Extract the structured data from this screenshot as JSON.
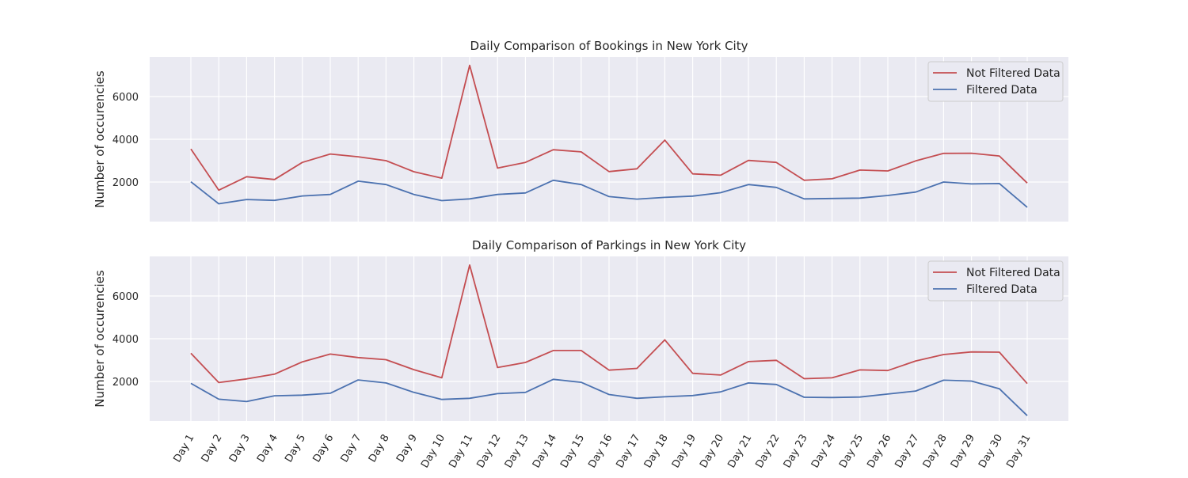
{
  "chart_data": [
    {
      "type": "line",
      "title": "Daily Comparison of Bookings in New York City",
      "xlabel": "",
      "ylabel": "Number of occurencies",
      "ylim": [
        0,
        7800
      ],
      "yticks": [
        2000,
        4000,
        6000
      ],
      "grid": true,
      "legend_position": "top-right",
      "categories": [
        "Day 1",
        "Day 2",
        "Day 3",
        "Day 4",
        "Day 5",
        "Day 6",
        "Day 7",
        "Day 8",
        "Day 9",
        "Day 10",
        "Day 11",
        "Day 12",
        "Day 13",
        "Day 14",
        "Day 15",
        "Day 16",
        "Day 17",
        "Day 18",
        "Day 19",
        "Day 20",
        "Day 21",
        "Day 22",
        "Day 23",
        "Day 24",
        "Day 25",
        "Day 26",
        "Day 27",
        "Day 28",
        "Day 29",
        "Day 30",
        "Day 31"
      ],
      "series": [
        {
          "name": "Not Filtered Data",
          "color": "#c44e52",
          "values": [
            3550,
            1620,
            2250,
            2120,
            2920,
            3310,
            3180,
            3000,
            2480,
            2180,
            7460,
            2650,
            2920,
            3510,
            3410,
            2490,
            2620,
            3960,
            2380,
            2320,
            3010,
            2920,
            2080,
            2150,
            2560,
            2520,
            2990,
            3340,
            3350,
            3220,
            1950
          ]
        },
        {
          "name": "Filtered Data",
          "color": "#4c72b0",
          "values": [
            2010,
            980,
            1180,
            1140,
            1350,
            1420,
            2040,
            1880,
            1420,
            1130,
            1210,
            1420,
            1490,
            2080,
            1880,
            1320,
            1200,
            1280,
            1340,
            1500,
            1880,
            1750,
            1210,
            1230,
            1250,
            1370,
            1530,
            2000,
            1910,
            1930,
            820
          ]
        }
      ]
    },
    {
      "type": "line",
      "title": "Daily Comparison of Parkings in New York City",
      "xlabel": "",
      "ylabel": "Number of occurencies",
      "ylim": [
        0,
        7800
      ],
      "yticks": [
        2000,
        4000,
        6000
      ],
      "grid": true,
      "legend_position": "top-right",
      "categories": [
        "Day 1",
        "Day 2",
        "Day 3",
        "Day 4",
        "Day 5",
        "Day 6",
        "Day 7",
        "Day 8",
        "Day 9",
        "Day 10",
        "Day 11",
        "Day 12",
        "Day 13",
        "Day 14",
        "Day 15",
        "Day 16",
        "Day 17",
        "Day 18",
        "Day 19",
        "Day 20",
        "Day 21",
        "Day 22",
        "Day 23",
        "Day 24",
        "Day 25",
        "Day 26",
        "Day 27",
        "Day 28",
        "Day 29",
        "Day 30",
        "Day 31"
      ],
      "series": [
        {
          "name": "Not Filtered Data",
          "color": "#c44e52",
          "values": [
            3320,
            1950,
            2120,
            2340,
            2920,
            3280,
            3120,
            3020,
            2550,
            2170,
            7450,
            2650,
            2890,
            3450,
            3450,
            2530,
            2610,
            3950,
            2380,
            2300,
            2930,
            2990,
            2130,
            2170,
            2540,
            2510,
            2960,
            3260,
            3380,
            3370,
            1900
          ]
        },
        {
          "name": "Filtered Data",
          "color": "#4c72b0",
          "values": [
            1910,
            1170,
            1060,
            1330,
            1360,
            1450,
            2070,
            1930,
            1490,
            1160,
            1210,
            1430,
            1490,
            2100,
            1960,
            1390,
            1210,
            1280,
            1340,
            1510,
            1930,
            1860,
            1260,
            1250,
            1270,
            1410,
            1550,
            2060,
            2020,
            1660,
            400
          ]
        }
      ]
    }
  ]
}
